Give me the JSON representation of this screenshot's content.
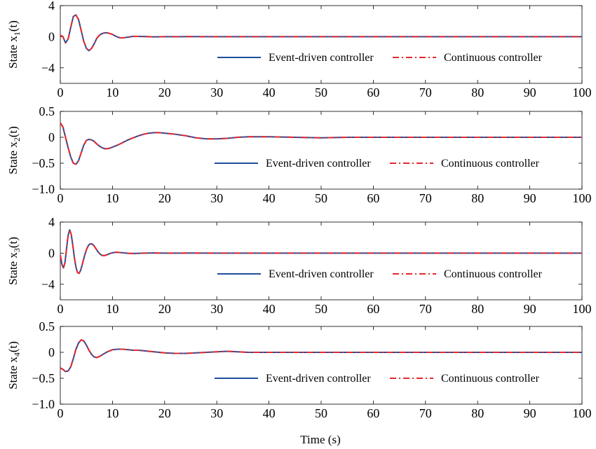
{
  "chart_data": [
    {
      "type": "line",
      "ylabel_prefix": "State x",
      "ylabel_sub": "1",
      "ylabel_suffix": "(t)",
      "xlim": [
        0,
        100
      ],
      "ylim": [
        -6,
        4
      ],
      "xticks": [
        0,
        10,
        20,
        30,
        40,
        50,
        60,
        70,
        80,
        90,
        100
      ],
      "xtick_labels": [
        "0",
        "10",
        "20",
        "30",
        "40",
        "50",
        "60",
        "70",
        "80",
        "90",
        "100"
      ],
      "yticks": [
        4,
        0,
        -4
      ],
      "ytick_labels": [
        "4",
        "0",
        "−4"
      ],
      "legend_position": "lower-right",
      "series": [
        {
          "name": "Event-driven controller",
          "color": "#1f4e9c",
          "style": "solid",
          "x": [
            0,
            0.5,
            1,
            1.5,
            2,
            2.5,
            3,
            3.5,
            4,
            4.5,
            5,
            5.5,
            6,
            6.5,
            7,
            7.5,
            8,
            8.5,
            9,
            9.5,
            10,
            10.5,
            11,
            11.5,
            12,
            13,
            14,
            16,
            18,
            20,
            25,
            30,
            40,
            50,
            60,
            70,
            80,
            90,
            100
          ],
          "y": [
            0.2,
            0,
            -0.8,
            -0.3,
            1.2,
            2.6,
            2.8,
            2.2,
            0.8,
            -0.6,
            -1.5,
            -1.8,
            -1.5,
            -0.9,
            -0.2,
            0.2,
            0.4,
            0.5,
            0.5,
            0.4,
            0.3,
            0.1,
            -0.05,
            -0.15,
            -0.15,
            -0.05,
            0.05,
            0.02,
            -0.02,
            0,
            0.01,
            0,
            0,
            0,
            0,
            0,
            0,
            0,
            0
          ]
        },
        {
          "name": "Continuous controller",
          "color": "#e8282b",
          "style": "dashdot",
          "x": [
            0,
            0.5,
            1,
            1.5,
            2,
            2.5,
            3,
            3.5,
            4,
            4.5,
            5,
            5.5,
            6,
            6.5,
            7,
            7.5,
            8,
            8.5,
            9,
            9.5,
            10,
            10.5,
            11,
            11.5,
            12,
            13,
            14,
            16,
            18,
            20,
            25,
            30,
            40,
            50,
            60,
            70,
            80,
            90,
            100
          ],
          "y": [
            0.2,
            0,
            -0.8,
            -0.3,
            1.2,
            2.6,
            2.8,
            2.2,
            0.8,
            -0.6,
            -1.5,
            -1.8,
            -1.5,
            -0.9,
            -0.2,
            0.2,
            0.4,
            0.5,
            0.5,
            0.4,
            0.3,
            0.1,
            -0.05,
            -0.15,
            -0.15,
            -0.05,
            0.05,
            0.02,
            -0.02,
            0,
            0.01,
            0,
            0,
            0,
            0,
            0,
            0,
            0,
            0
          ]
        }
      ]
    },
    {
      "type": "line",
      "ylabel_prefix": "State x",
      "ylabel_sub": "2",
      "ylabel_suffix": "(t)",
      "xlim": [
        0,
        100
      ],
      "ylim": [
        -1.0,
        0.5
      ],
      "xticks": [
        0,
        10,
        20,
        30,
        40,
        50,
        60,
        70,
        80,
        90,
        100
      ],
      "xtick_labels": [
        "0",
        "10",
        "20",
        "30",
        "40",
        "50",
        "60",
        "70",
        "80",
        "90",
        "100"
      ],
      "yticks": [
        0.5,
        0,
        -0.5,
        -1.0
      ],
      "ytick_labels": [
        "0.5",
        "0",
        "−0.5",
        "−1.0"
      ],
      "legend_position": "lower-right",
      "series": [
        {
          "name": "Event-driven controller",
          "color": "#1f4e9c",
          "style": "solid",
          "x": [
            0,
            0.5,
            1,
            1.5,
            2,
            2.5,
            3,
            3.5,
            4,
            4.5,
            5,
            5.5,
            6,
            6.5,
            7,
            7.5,
            8,
            8.5,
            9,
            9.5,
            10,
            11,
            12,
            13,
            14,
            15,
            16,
            17,
            18,
            19,
            20,
            22,
            24,
            26,
            28,
            30,
            32,
            34,
            36,
            38,
            40,
            45,
            50,
            55,
            60,
            70,
            80,
            90,
            100
          ],
          "y": [
            0.28,
            0.2,
            0.0,
            -0.2,
            -0.38,
            -0.5,
            -0.52,
            -0.45,
            -0.3,
            -0.15,
            -0.06,
            -0.04,
            -0.05,
            -0.08,
            -0.13,
            -0.17,
            -0.2,
            -0.22,
            -0.22,
            -0.21,
            -0.19,
            -0.15,
            -0.1,
            -0.05,
            -0.01,
            0.03,
            0.06,
            0.08,
            0.09,
            0.09,
            0.08,
            0.06,
            0.03,
            -0.01,
            -0.03,
            -0.03,
            -0.02,
            0.0,
            0.01,
            0.01,
            0.01,
            0.0,
            -0.01,
            0.0,
            0.0,
            0.0,
            0.0,
            0.0,
            0.0
          ]
        },
        {
          "name": "Continuous controller",
          "color": "#e8282b",
          "style": "dashdot",
          "x": [
            0,
            0.5,
            1,
            1.5,
            2,
            2.5,
            3,
            3.5,
            4,
            4.5,
            5,
            5.5,
            6,
            6.5,
            7,
            7.5,
            8,
            8.5,
            9,
            9.5,
            10,
            11,
            12,
            13,
            14,
            15,
            16,
            17,
            18,
            19,
            20,
            22,
            24,
            26,
            28,
            30,
            32,
            34,
            36,
            38,
            40,
            45,
            50,
            55,
            60,
            70,
            80,
            90,
            100
          ],
          "y": [
            0.28,
            0.2,
            0.0,
            -0.2,
            -0.38,
            -0.5,
            -0.52,
            -0.45,
            -0.3,
            -0.15,
            -0.06,
            -0.04,
            -0.05,
            -0.08,
            -0.13,
            -0.17,
            -0.2,
            -0.22,
            -0.22,
            -0.21,
            -0.19,
            -0.15,
            -0.1,
            -0.05,
            -0.01,
            0.03,
            0.06,
            0.08,
            0.09,
            0.09,
            0.08,
            0.06,
            0.03,
            -0.01,
            -0.03,
            -0.03,
            -0.02,
            0.0,
            0.01,
            0.01,
            0.01,
            0.0,
            -0.01,
            0.0,
            0.0,
            0.0,
            0.0,
            0.0,
            0.0
          ]
        }
      ]
    },
    {
      "type": "line",
      "ylabel_prefix": "State x",
      "ylabel_sub": "3",
      "ylabel_suffix": "(t)",
      "xlim": [
        0,
        100
      ],
      "ylim": [
        -6,
        4
      ],
      "xticks": [
        0,
        10,
        20,
        30,
        40,
        50,
        60,
        70,
        80,
        90,
        100
      ],
      "xtick_labels": [
        "0",
        "10",
        "20",
        "30",
        "40",
        "50",
        "60",
        "70",
        "80",
        "90",
        "100"
      ],
      "yticks": [
        4,
        0,
        -4
      ],
      "ytick_labels": [
        "4",
        "0",
        "−4"
      ],
      "legend_position": "lower-right",
      "series": [
        {
          "name": "Event-driven controller",
          "color": "#1f4e9c",
          "style": "solid",
          "x": [
            0,
            0.3,
            0.6,
            0.9,
            1.2,
            1.5,
            1.8,
            2.1,
            2.4,
            2.7,
            3.0,
            3.3,
            3.6,
            3.9,
            4.2,
            4.5,
            4.8,
            5.1,
            5.4,
            5.7,
            6.0,
            6.4,
            6.8,
            7.2,
            7.6,
            8.0,
            8.5,
            9,
            9.5,
            10,
            10.5,
            11,
            12,
            13,
            14,
            16,
            18,
            20,
            25,
            30,
            40,
            50,
            60,
            70,
            80,
            90,
            100
          ],
          "y": [
            -0.2,
            -1.4,
            -1.9,
            -1.2,
            0.6,
            2.3,
            3.0,
            2.4,
            1.0,
            -0.6,
            -1.8,
            -2.5,
            -2.6,
            -2.2,
            -1.5,
            -0.7,
            0.0,
            0.6,
            1.0,
            1.2,
            1.2,
            1.0,
            0.6,
            0.2,
            -0.1,
            -0.3,
            -0.3,
            -0.2,
            -0.05,
            0.05,
            0.1,
            0.1,
            0.05,
            -0.02,
            -0.04,
            0.0,
            0.02,
            0.0,
            0.01,
            0.0,
            0.0,
            0.0,
            0.0,
            0.0,
            0.0,
            0.0,
            0.0
          ]
        },
        {
          "name": "Continuous controller",
          "color": "#e8282b",
          "style": "dashdot",
          "x": [
            0,
            0.3,
            0.6,
            0.9,
            1.2,
            1.5,
            1.8,
            2.1,
            2.4,
            2.7,
            3.0,
            3.3,
            3.6,
            3.9,
            4.2,
            4.5,
            4.8,
            5.1,
            5.4,
            5.7,
            6.0,
            6.4,
            6.8,
            7.2,
            7.6,
            8.0,
            8.5,
            9,
            9.5,
            10,
            10.5,
            11,
            12,
            13,
            14,
            16,
            18,
            20,
            25,
            30,
            40,
            50,
            60,
            70,
            80,
            90,
            100
          ],
          "y": [
            -0.2,
            -1.4,
            -1.9,
            -1.2,
            0.6,
            2.3,
            3.0,
            2.4,
            1.0,
            -0.6,
            -1.8,
            -2.5,
            -2.6,
            -2.2,
            -1.5,
            -0.7,
            0.0,
            0.6,
            1.0,
            1.2,
            1.2,
            1.0,
            0.6,
            0.2,
            -0.1,
            -0.3,
            -0.3,
            -0.2,
            -0.05,
            0.05,
            0.1,
            0.1,
            0.05,
            -0.02,
            -0.04,
            0.0,
            0.02,
            0.0,
            0.01,
            0.0,
            0.0,
            0.0,
            0.0,
            0.0,
            0.0,
            0.0,
            0.0
          ]
        }
      ]
    },
    {
      "type": "line",
      "ylabel_prefix": "State x",
      "ylabel_sub": "4",
      "ylabel_suffix": "(t)",
      "xlabel": "Time (s)",
      "xlim": [
        0,
        100
      ],
      "ylim": [
        -1.0,
        0.5
      ],
      "xticks": [
        0,
        10,
        20,
        30,
        40,
        50,
        60,
        70,
        80,
        90,
        100
      ],
      "xtick_labels": [
        "0",
        "10",
        "20",
        "30",
        "40",
        "50",
        "60",
        "70",
        "80",
        "90",
        "100"
      ],
      "yticks": [
        0.5,
        0,
        -0.5,
        -1.0
      ],
      "ytick_labels": [
        "0.5",
        "0",
        "−0.5",
        "−1.0"
      ],
      "legend_position": "lower-right",
      "series": [
        {
          "name": "Event-driven controller",
          "color": "#1f4e9c",
          "style": "solid",
          "x": [
            0,
            0.5,
            1,
            1.5,
            2,
            2.5,
            3,
            3.5,
            4,
            4.5,
            5,
            5.5,
            6,
            6.5,
            7,
            7.5,
            8,
            8.5,
            9,
            9.5,
            10,
            11,
            12,
            13,
            14,
            15,
            16,
            18,
            20,
            22,
            24,
            26,
            28,
            30,
            32,
            34,
            36,
            40,
            45,
            50,
            60,
            70,
            80,
            90,
            100
          ],
          "y": [
            -0.3,
            -0.33,
            -0.37,
            -0.36,
            -0.28,
            -0.12,
            0.06,
            0.18,
            0.24,
            0.22,
            0.14,
            0.04,
            -0.04,
            -0.09,
            -0.1,
            -0.08,
            -0.05,
            -0.02,
            0.01,
            0.03,
            0.05,
            0.06,
            0.06,
            0.05,
            0.04,
            0.04,
            0.03,
            0.01,
            -0.01,
            -0.02,
            -0.02,
            -0.01,
            0.0,
            0.01,
            0.02,
            0.01,
            0.0,
            0.0,
            0.0,
            0.0,
            0.0,
            0.0,
            0.0,
            0.0,
            0.0
          ]
        },
        {
          "name": "Continuous controller",
          "color": "#e8282b",
          "style": "dashdot",
          "x": [
            0,
            0.5,
            1,
            1.5,
            2,
            2.5,
            3,
            3.5,
            4,
            4.5,
            5,
            5.5,
            6,
            6.5,
            7,
            7.5,
            8,
            8.5,
            9,
            9.5,
            10,
            11,
            12,
            13,
            14,
            15,
            16,
            18,
            20,
            22,
            24,
            26,
            28,
            30,
            32,
            34,
            36,
            40,
            45,
            50,
            60,
            70,
            80,
            90,
            100
          ],
          "y": [
            -0.3,
            -0.33,
            -0.37,
            -0.36,
            -0.28,
            -0.12,
            0.06,
            0.18,
            0.24,
            0.22,
            0.14,
            0.04,
            -0.04,
            -0.09,
            -0.1,
            -0.08,
            -0.05,
            -0.02,
            0.01,
            0.03,
            0.05,
            0.06,
            0.06,
            0.05,
            0.04,
            0.04,
            0.03,
            0.01,
            -0.01,
            -0.02,
            -0.02,
            -0.01,
            0.0,
            0.01,
            0.02,
            0.01,
            0.0,
            0.0,
            0.0,
            0.0,
            0.0,
            0.0,
            0.0,
            0.0,
            0.0
          ]
        }
      ]
    }
  ]
}
